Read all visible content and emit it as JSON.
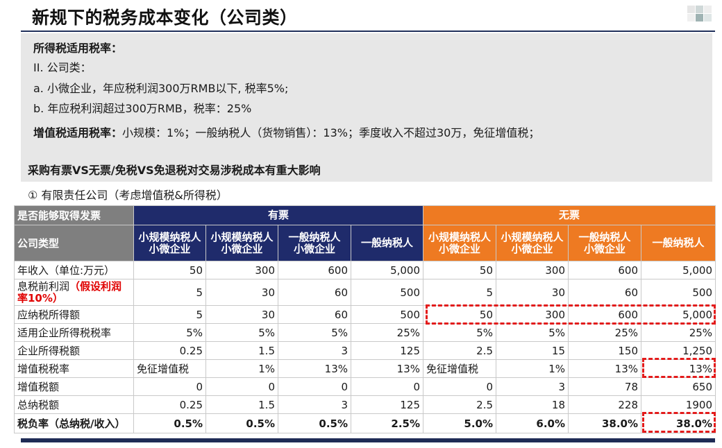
{
  "title": "新规下的税务成本变化（公司类）",
  "info": {
    "income_tax_heading": "所得税适用税率：",
    "item_company": "II. 公司类：",
    "item_a": "a. 小微企业，年应税利润300万RMB以下, 税率5%;",
    "item_b": "b. 年应税利润超过300万RMB，税率：25%",
    "vat_heading": "增值税适用税率：",
    "vat_text": "小规模：1%；一般纳税人（货物销售）：13%；季度收入不超过30万，免征增值税；",
    "impact": "采购有票VS无票/免税VS免退税对交易涉税成本有重大影响"
  },
  "subtitle": "① 有限责任公司（考虑增值税&所得税）",
  "table": {
    "invoice_q": "是否能够取得发票",
    "with_invoice": "有票",
    "without_invoice": "无票",
    "company_type": "公司类型",
    "types": [
      "小规模纳税人\n小微企业",
      "小规模纳税人\n小微企业",
      "一般纳税人\n小微企业",
      "一般纳税人",
      "小规模纳税人\n小微企业",
      "小规模纳税人\n小微企业",
      "一般纳税人\n小微企业",
      "一般纳税人"
    ],
    "rows": [
      {
        "label": "年收入（单位:万元）",
        "values": [
          "50",
          "300",
          "600",
          "5,000",
          "50",
          "300",
          "600",
          "5,000"
        ]
      },
      {
        "label": "息税前利润",
        "label_note": "（假设利润率10%）",
        "values": [
          "5",
          "30",
          "60",
          "500",
          "5",
          "30",
          "60",
          "500"
        ]
      },
      {
        "label": "应纳税所得额",
        "values": [
          "5",
          "30",
          "60",
          "500",
          "50",
          "300",
          "600",
          "5,000"
        ]
      },
      {
        "label": "适用企业所得税税率",
        "values": [
          "5%",
          "5%",
          "5%",
          "25%",
          "5%",
          "5%",
          "25%",
          "25%"
        ]
      },
      {
        "label": "企业所得税额",
        "values": [
          "0.25",
          "1.5",
          "3",
          "125",
          "2.5",
          "15",
          "150",
          "1,250"
        ]
      },
      {
        "label": "增值税税率",
        "values": [
          "免征增值税",
          "1%",
          "13%",
          "13%",
          "免征增值税",
          "1%",
          "13%",
          "13%"
        ]
      },
      {
        "label": "增值税额",
        "values": [
          "0",
          "0",
          "0",
          "0",
          "0",
          "3",
          "78",
          "650"
        ]
      },
      {
        "label": "总纳税额",
        "values": [
          "0.25",
          "1.5",
          "3",
          "125",
          "2.5",
          "18",
          "228",
          "1900"
        ]
      },
      {
        "label": "税负率（总纳税/收入）",
        "values": [
          "0.5%",
          "0.5%",
          "0.5%",
          "2.5%",
          "5.0%",
          "6.0%",
          "38.0%",
          "38.0%"
        ]
      }
    ]
  },
  "colors": {
    "navy": "#1f2b6b",
    "orange": "#ee7a22",
    "highlight": "#e31b1b"
  }
}
